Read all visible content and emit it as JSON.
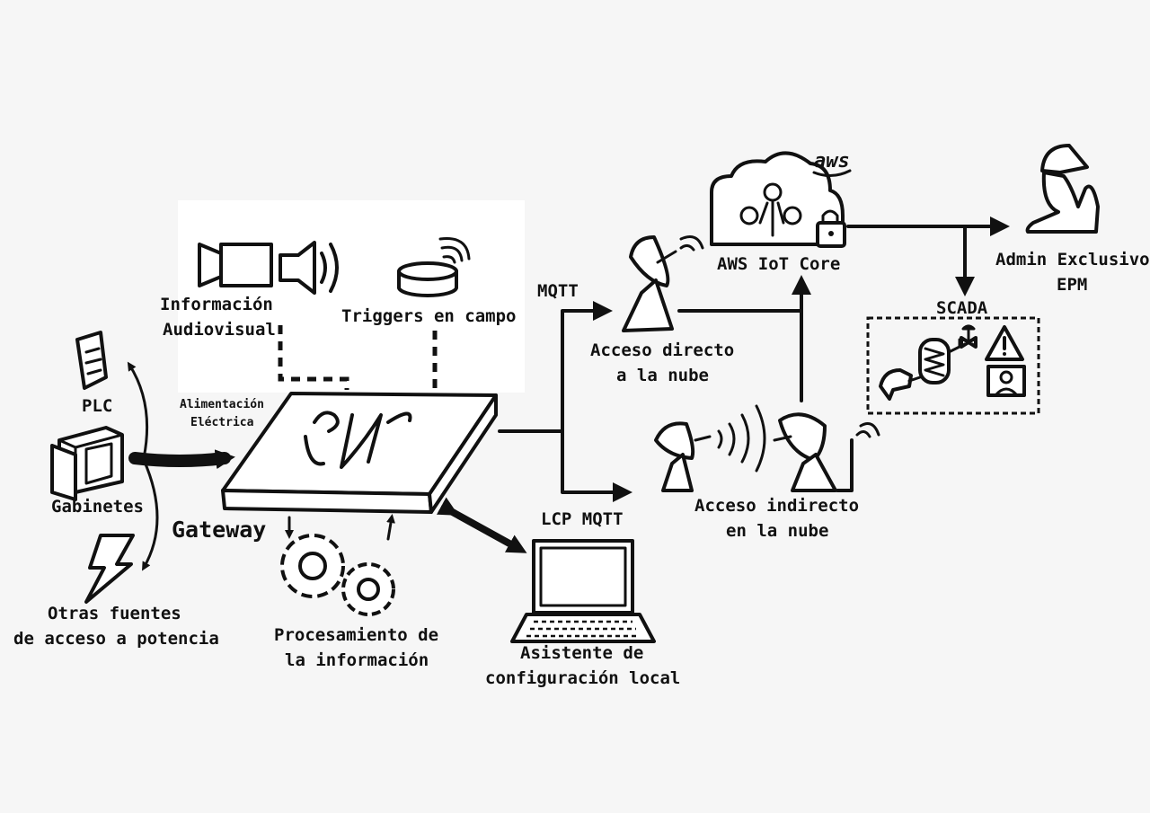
{
  "labels": {
    "audiovisual": [
      "Información",
      "Audiovisual"
    ],
    "triggers": "Triggers en campo",
    "plc": "PLC",
    "alimentacion": [
      "Alimentación",
      "Eléctrica"
    ],
    "gabinetes": "Gabinetes",
    "otras_fuentes": [
      "Otras fuentes",
      "de acceso a potencia"
    ],
    "gateway": "Gateway",
    "procesamiento": [
      "Procesamiento de",
      "la información"
    ],
    "lcp_mqtt": "LCP MQTT",
    "asistente": [
      "Asistente de",
      "configuración local"
    ],
    "mqtt": "MQTT",
    "acceso_directo": [
      "Acceso directo",
      "a la nube"
    ],
    "acceso_indirecto": [
      "Acceso indirecto",
      "en la nube"
    ],
    "aws_iot_core": "AWS IoT Core",
    "aws_logo": "aws",
    "scada": "SCADA",
    "admin": [
      "Admin Exclusivo",
      "EPM"
    ]
  },
  "colors": {
    "background": "#f6f6f6",
    "ink": "#111111",
    "panel": "#ffffff"
  },
  "icons": [
    "video-camera-icon",
    "speaker-icon",
    "sensor-trigger-icon",
    "plc-icon",
    "cabinet-icon",
    "lightning-icon",
    "gateway-device-icon",
    "gears-icon",
    "laptop-icon",
    "satellite-dish-icon",
    "cloud-icon",
    "lock-icon",
    "admin-user-icon",
    "scada-panel-icon"
  ]
}
